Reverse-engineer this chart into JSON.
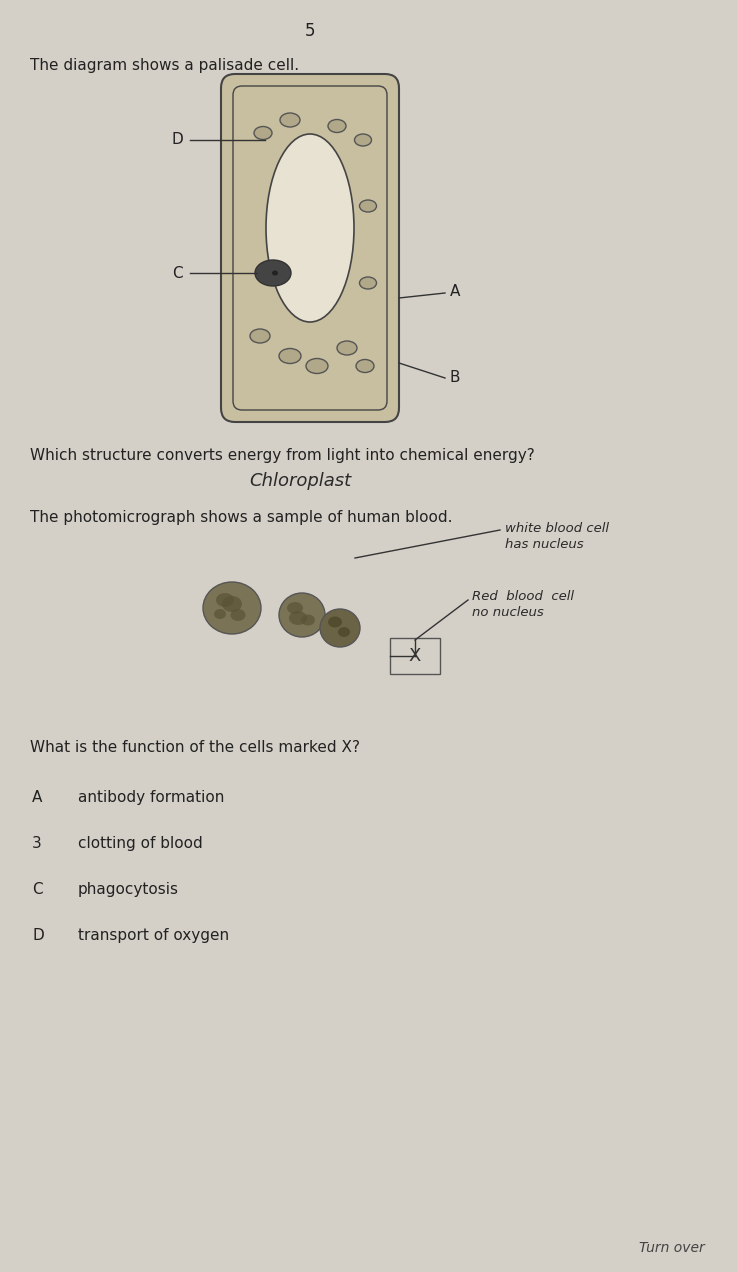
{
  "page_number": "5",
  "bg_color": "#d4d0c8",
  "text_color": "#222222",
  "question1_text": "The diagram shows a palisade cell.",
  "question2_text": "Which structure converts energy from light into chemical energy?",
  "answer1_handwritten": "Chloroplast",
  "question3_text": "The photomicrograph shows a sample of human blood.",
  "annotation1_line1": "white blood cell",
  "annotation1_line2": "has nucleus",
  "annotation2_line1": "Red  blood  cell",
  "annotation2_line2": "no nucleus",
  "question4_text": "What is the function of the cells marked X?",
  "options": [
    [
      "A",
      "antibody formation"
    ],
    [
      "3",
      "clotting of blood"
    ],
    [
      "C",
      "phagocytosis"
    ],
    [
      "D",
      "transport of oxygen"
    ]
  ],
  "turn_over_text": "Turn over",
  "cell_outline_color": "#444444",
  "cell_fill_color": "#c8bfa0",
  "vacuole_color": "#e8e2d2",
  "chloroplast_fill": "#444444",
  "label_line_color": "#333333",
  "organelle_edge": "#555555",
  "organelle_face": "#b0a888"
}
